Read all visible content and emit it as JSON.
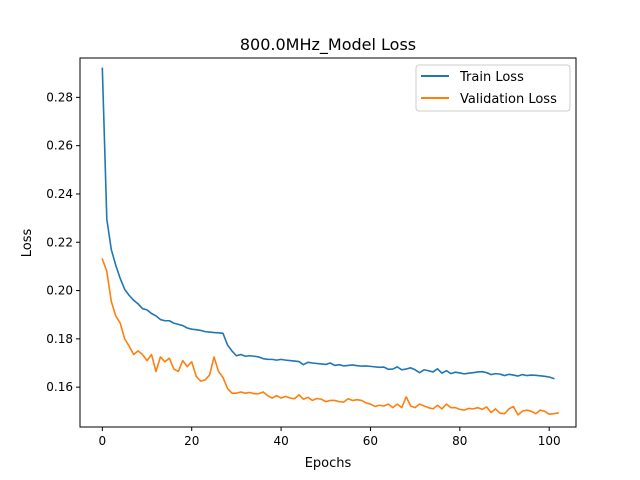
{
  "chart_data": {
    "type": "line",
    "title": "800.0MHz_Model Loss",
    "xlabel": "Epochs",
    "ylabel": "Loss",
    "xlim": [
      -5,
      106
    ],
    "ylim": [
      0.1435,
      0.2963
    ],
    "xticks": [
      0,
      20,
      40,
      60,
      80,
      100
    ],
    "xtick_labels": [
      "0",
      "20",
      "40",
      "60",
      "80",
      "100"
    ],
    "yticks": [
      0.16,
      0.18,
      0.2,
      0.22,
      0.24,
      0.26,
      0.28
    ],
    "ytick_labels": [
      "0.16",
      "0.18",
      "0.20",
      "0.22",
      "0.24",
      "0.26",
      "0.28"
    ],
    "grid": false,
    "legend_position": "top-right",
    "series": [
      {
        "name": "Train Loss",
        "color": "#1f77b4",
        "values": [
          0.292,
          0.2295,
          0.217,
          0.2105,
          0.205,
          0.2005,
          0.198,
          0.196,
          0.1945,
          0.1925,
          0.192,
          0.1905,
          0.1895,
          0.188,
          0.1875,
          0.1875,
          0.1865,
          0.186,
          0.1855,
          0.1845,
          0.184,
          0.1838,
          0.1835,
          0.183,
          0.1828,
          0.1826,
          0.1825,
          0.1823,
          0.1775,
          0.175,
          0.173,
          0.1735,
          0.1728,
          0.173,
          0.1728,
          0.1725,
          0.1718,
          0.1715,
          0.1715,
          0.1712,
          0.1715,
          0.1712,
          0.171,
          0.1708,
          0.1706,
          0.1693,
          0.1703,
          0.17,
          0.1698,
          0.1696,
          0.1694,
          0.17,
          0.169,
          0.1693,
          0.1688,
          0.169,
          0.1692,
          0.1689,
          0.1687,
          0.1688,
          0.1686,
          0.1684,
          0.1682,
          0.1683,
          0.1674,
          0.1675,
          0.1684,
          0.1672,
          0.1675,
          0.168,
          0.1672,
          0.166,
          0.1672,
          0.1668,
          0.1663,
          0.1676,
          0.1658,
          0.1668,
          0.1656,
          0.1662,
          0.1659,
          0.1655,
          0.1658,
          0.166,
          0.1663,
          0.1664,
          0.166,
          0.1652,
          0.1656,
          0.1654,
          0.1648,
          0.1653,
          0.165,
          0.1646,
          0.1652,
          0.1648,
          0.165,
          0.1649,
          0.1647,
          0.1645,
          0.1642,
          0.1636
        ]
      },
      {
        "name": "Validation Loss",
        "color": "#ff7f0e",
        "values": [
          0.213,
          0.208,
          0.1955,
          0.1895,
          0.1865,
          0.18,
          0.177,
          0.1735,
          0.175,
          0.1735,
          0.171,
          0.1735,
          0.1665,
          0.1725,
          0.1705,
          0.172,
          0.1675,
          0.1665,
          0.171,
          0.1685,
          0.1705,
          0.1645,
          0.1625,
          0.163,
          0.165,
          0.1725,
          0.1665,
          0.164,
          0.1595,
          0.1575,
          0.1575,
          0.158,
          0.1575,
          0.1578,
          0.1573,
          0.1573,
          0.158,
          0.1565,
          0.1555,
          0.1565,
          0.1555,
          0.1562,
          0.1555,
          0.1552,
          0.1568,
          0.155,
          0.1558,
          0.1545,
          0.1553,
          0.155,
          0.154,
          0.1545,
          0.1545,
          0.154,
          0.1538,
          0.1552,
          0.1545,
          0.1548,
          0.1545,
          0.1535,
          0.153,
          0.152,
          0.1525,
          0.1522,
          0.153,
          0.1515,
          0.153,
          0.1515,
          0.156,
          0.1522,
          0.1515,
          0.153,
          0.1522,
          0.1515,
          0.151,
          0.1525,
          0.151,
          0.153,
          0.1515,
          0.1515,
          0.1508,
          0.1505,
          0.1512,
          0.151,
          0.1515,
          0.1508,
          0.1518,
          0.1495,
          0.151,
          0.1492,
          0.149,
          0.151,
          0.152,
          0.1485,
          0.15,
          0.1505,
          0.15,
          0.149,
          0.1505,
          0.15,
          0.1488,
          0.149,
          0.1493
        ]
      }
    ]
  }
}
